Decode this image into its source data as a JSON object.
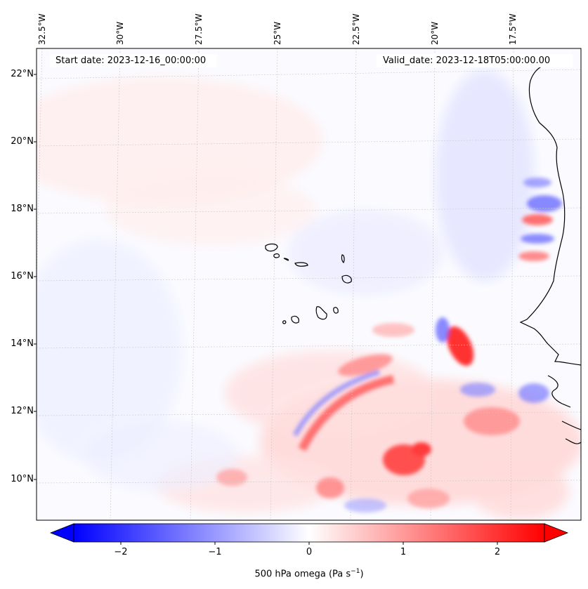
{
  "map": {
    "start_date": "Start date: 2023-12-16_00:00:00",
    "valid_date": "Valid_date: 2023-12-18T05:00:00.00",
    "longitude_labels": [
      "32.5°W",
      "30°W",
      "27.5°W",
      "25°W",
      "22.5°W",
      "20°W",
      "17.5°W"
    ],
    "latitude_labels": [
      "22°N",
      "20°N",
      "18°N",
      "16°N",
      "14°N",
      "12°N",
      "10°N"
    ],
    "extent": {
      "lon_min": -32.8,
      "lon_max": -15.6,
      "lat_min": 8.9,
      "lat_max": 22.8
    },
    "islands": [
      "Santo Antão",
      "São Vicente",
      "São Nicolau",
      "Sal",
      "Boa Vista",
      "Maio",
      "Santiago",
      "Fogo",
      "Brava"
    ]
  },
  "colorbar": {
    "ticks": [
      "−2",
      "−1",
      "0",
      "1",
      "2"
    ],
    "tick_values": [
      -2,
      -1,
      0,
      1,
      2
    ],
    "range": [
      -2.6,
      2.6
    ],
    "label_prefix": "500 hPa omega (Pa s",
    "label_exp": "−1",
    "label_suffix": ")",
    "colors": {
      "low": "#0000ff",
      "mid": "#ffffff",
      "high": "#ff0000"
    }
  }
}
